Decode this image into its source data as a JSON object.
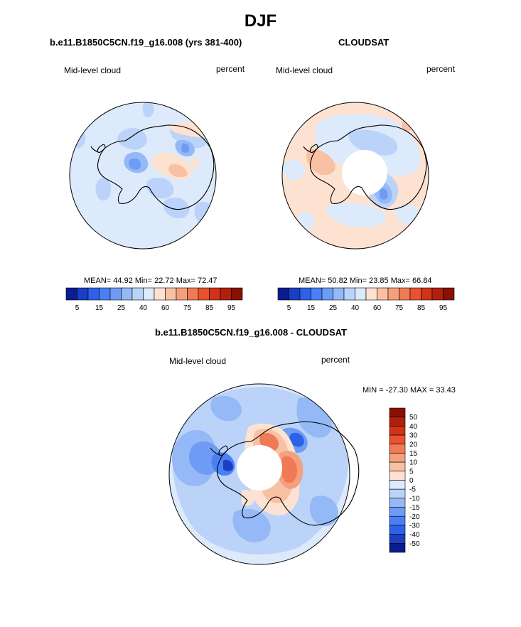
{
  "page": {
    "title": "DJF"
  },
  "chart_data": [
    {
      "type": "heatmap",
      "projection": "south-polar-stereographic",
      "title": "b.e11.B1850C5CN.f19_g16.008 (yrs 381-400)",
      "left_label": "Mid-level cloud",
      "right_label": "percent",
      "stats_text": {
        "mean_label": "MEAN=",
        "mean": "44.92",
        "min_label": "Min=",
        "min": "22.72",
        "max_label": "Max=",
        "max": "72.47"
      },
      "colorbar": {
        "orientation": "horizontal",
        "tick_labels": [
          "5",
          "15",
          "25",
          "40",
          "60",
          "75",
          "85",
          "95"
        ],
        "levels": [
          5,
          10,
          15,
          20,
          25,
          30,
          40,
          50,
          60,
          70,
          75,
          80,
          85,
          90,
          95
        ],
        "colors": [
          "#0a1c8f",
          "#1a3fc4",
          "#2d62e8",
          "#4a80f5",
          "#6e9cf5",
          "#95b8f6",
          "#bbd3f8",
          "#ddeafc",
          "#fde2d2",
          "#f9c1a3",
          "#f5a07c",
          "#f07a55",
          "#e8522f",
          "#d03318",
          "#b0200c",
          "#8a1005"
        ]
      },
      "background_value_color": "#ddeafc"
    },
    {
      "type": "heatmap",
      "projection": "south-polar-stereographic",
      "title": "CLOUDSAT",
      "left_label": "Mid-level cloud",
      "right_label": "percent",
      "stats_text": {
        "mean_label": "MEAN=",
        "mean": "50.82",
        "min_label": "Min=",
        "min": "23.85",
        "max_label": "Max=",
        "max": "66.84"
      },
      "colorbar": {
        "orientation": "horizontal",
        "tick_labels": [
          "5",
          "15",
          "25",
          "40",
          "60",
          "75",
          "85",
          "95"
        ],
        "levels": [
          5,
          10,
          15,
          20,
          25,
          30,
          40,
          50,
          60,
          70,
          75,
          80,
          85,
          90,
          95
        ],
        "colors": [
          "#0a1c8f",
          "#1a3fc4",
          "#2d62e8",
          "#4a80f5",
          "#6e9cf5",
          "#95b8f6",
          "#bbd3f8",
          "#ddeafc",
          "#fde2d2",
          "#f9c1a3",
          "#f5a07c",
          "#f07a55",
          "#e8522f",
          "#d03318",
          "#b0200c",
          "#8a1005"
        ]
      },
      "background_value_color": "#fde2d2",
      "missing_data_region": "pole"
    },
    {
      "type": "heatmap",
      "projection": "south-polar-stereographic",
      "title": "b.e11.B1850C5CN.f19_g16.008 - CLOUDSAT",
      "left_label": "Mid-level cloud",
      "right_label": "percent",
      "stats_text": {
        "min_label": "MIN =",
        "min": "-27.30",
        "max_label": "MAX =",
        "max": "33.43"
      },
      "colorbar": {
        "orientation": "vertical",
        "tick_labels": [
          "50",
          "40",
          "30",
          "20",
          "15",
          "10",
          "5",
          "0",
          "-5",
          "-10",
          "-15",
          "-20",
          "-30",
          "-40",
          "-50"
        ],
        "colors": [
          "#8a1005",
          "#b0200c",
          "#d03318",
          "#e8522f",
          "#f07a55",
          "#f5a07c",
          "#f9c1a3",
          "#fde2d2",
          "#ddeafc",
          "#bbd3f8",
          "#95b8f6",
          "#6e9cf5",
          "#4a80f5",
          "#2d62e8",
          "#1a3fc4",
          "#0a1c8f"
        ]
      },
      "background_value_color": "#ddeafc",
      "missing_data_region": "pole"
    }
  ]
}
